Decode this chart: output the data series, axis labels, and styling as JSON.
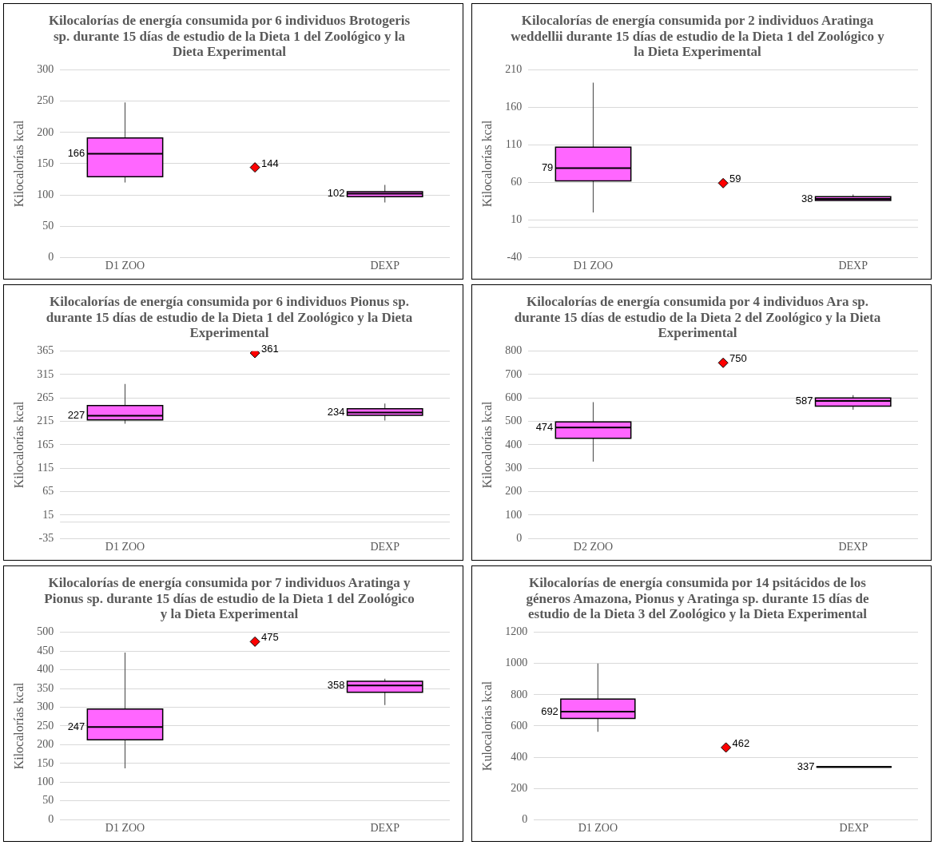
{
  "chart_data": [
    {
      "type": "box",
      "title": "Kilocalorías de energía consumida por 6 individuos Brotogeris sp. durante 15 días de estudio de la Dieta 1 del Zoológico y la Dieta Experimental",
      "ylabel": "Kilocalorías kcal",
      "categories": [
        "D1 ZOO",
        null,
        "DEXP"
      ],
      "ylim": [
        0,
        300
      ],
      "yticks": [
        0,
        50,
        100,
        150,
        200,
        250,
        300
      ],
      "grid": "y",
      "legend": false,
      "data_labels": true,
      "annotations": [
        "166",
        "102"
      ],
      "series": [
        {
          "type": "box",
          "color": "#ff66ff",
          "boxes": [
            {
              "low": 120,
              "q1": 129,
              "median": 166,
              "q3": 191,
              "high": 248
            },
            null,
            {
              "low": 88,
              "q1": 97,
              "median": 102,
              "q3": 105,
              "high": 116
            }
          ]
        },
        {
          "type": "scatter",
          "color": "#ff0000",
          "marker": "diamond",
          "values": [
            null,
            144,
            null
          ]
        }
      ]
    },
    {
      "type": "box",
      "title": "Kilocalorías de energía consumida por 2 individuos Aratinga weddellii durante 15 días de estudio de la Dieta 1 del Zoológico y la Dieta Experimental",
      "ylabel": "Kilocalorías kcal",
      "categories": [
        "D1 ZOO",
        null,
        "DEXP"
      ],
      "ylim": [
        -40,
        210
      ],
      "yticks": [
        -40,
        10,
        60,
        110,
        160,
        210
      ],
      "grid": "y",
      "legend": false,
      "data_labels": true,
      "annotations": [
        "79",
        "38"
      ],
      "ref_lines": [
        {
          "axis": "y",
          "value": 0,
          "color": "#d9d9d9"
        }
      ],
      "series": [
        {
          "type": "box",
          "color": "#ff66ff",
          "boxes": [
            {
              "low": 20,
              "q1": 62,
              "median": 79,
              "q3": 107,
              "high": 193
            },
            null,
            {
              "low": 36,
              "q1": 36,
              "median": 38,
              "q3": 41,
              "high": 44
            }
          ]
        },
        {
          "type": "scatter",
          "color": "#ff0000",
          "marker": "diamond",
          "values": [
            null,
            59,
            null
          ]
        }
      ]
    },
    {
      "type": "box",
      "title": "Kilocalorías de energía consumida por 6 individuos Pionus sp. durante 15 días de estudio de la Dieta 1 del Zoológico y la Dieta Experimental",
      "ylabel": "Kilocalorías kcal",
      "categories": [
        "D1 ZOO",
        null,
        "DEXP"
      ],
      "ylim": [
        -35,
        365
      ],
      "yticks": [
        -35,
        15,
        65,
        115,
        165,
        215,
        265,
        315,
        365
      ],
      "grid": "y",
      "legend": false,
      "data_labels": true,
      "annotations": [
        "227",
        "234"
      ],
      "ref_lines": [
        {
          "axis": "y",
          "value": 0,
          "color": "#d9d9d9"
        }
      ],
      "series": [
        {
          "type": "box",
          "color": "#ff66ff",
          "boxes": [
            {
              "low": 210,
              "q1": 218,
              "median": 227,
              "q3": 249,
              "high": 295
            },
            null,
            {
              "low": 217,
              "q1": 228,
              "median": 234,
              "q3": 242,
              "high": 253
            }
          ]
        },
        {
          "type": "scatter",
          "color": "#ff0000",
          "marker": "diamond",
          "values": [
            null,
            361,
            null
          ]
        }
      ]
    },
    {
      "type": "box",
      "title": "Kilocalorías de energía consumida por 4 individuos Ara sp. durante 15 días de estudio de la Dieta 2 del Zoológico y la Dieta Experimental",
      "ylabel": "Kilocalorías kcal",
      "categories": [
        "D2 ZOO",
        null,
        "DEXP"
      ],
      "ylim": [
        0,
        800
      ],
      "yticks": [
        0,
        100,
        200,
        300,
        400,
        500,
        600,
        700,
        800
      ],
      "grid": "y",
      "legend": false,
      "data_labels": true,
      "annotations": [
        "474",
        "587"
      ],
      "series": [
        {
          "type": "box",
          "color": "#ff66ff",
          "boxes": [
            {
              "low": 328,
              "q1": 428,
              "median": 474,
              "q3": 498,
              "high": 582
            },
            null,
            {
              "low": 550,
              "q1": 565,
              "median": 587,
              "q3": 600,
              "high": 612
            }
          ]
        },
        {
          "type": "scatter",
          "color": "#ff0000",
          "marker": "diamond",
          "values": [
            null,
            750,
            null
          ]
        }
      ]
    },
    {
      "type": "box",
      "title": "Kilocalorías de energía consumida por 7 individuos Aratinga y Pionus sp. durante 15 días de estudio de la Dieta 1 del Zoológico y la Dieta Experimental",
      "ylabel": "Kilocalorías kcal",
      "categories": [
        "D1 ZOO",
        null,
        "DEXP"
      ],
      "ylim": [
        0,
        500
      ],
      "yticks": [
        0,
        50,
        100,
        150,
        200,
        250,
        300,
        350,
        400,
        450,
        500
      ],
      "grid": "y",
      "legend": false,
      "data_labels": true,
      "annotations": [
        "247",
        "358"
      ],
      "series": [
        {
          "type": "box",
          "color": "#ff66ff",
          "boxes": [
            {
              "low": 137,
              "q1": 213,
              "median": 247,
              "q3": 295,
              "high": 446
            },
            null,
            {
              "low": 306,
              "q1": 340,
              "median": 358,
              "q3": 369,
              "high": 376
            }
          ]
        },
        {
          "type": "scatter",
          "color": "#ff0000",
          "marker": "diamond",
          "values": [
            null,
            475,
            null
          ]
        }
      ]
    },
    {
      "type": "box",
      "title": "Kilocalorías de energía consumida por 14 psitácidos de los géneros Amazona, Pionus y Aratinga sp. durante 15 días de estudio de la Dieta 3 del Zoológico y la Dieta Experimental",
      "ylabel": "Kulocalorías kcal",
      "categories": [
        "D1 ZOO",
        null,
        "DEXP"
      ],
      "ylim": [
        0,
        1200
      ],
      "yticks": [
        0,
        200,
        400,
        600,
        800,
        1000,
        1200
      ],
      "grid": "y",
      "legend": false,
      "data_labels": true,
      "annotations": [
        "692",
        "337"
      ],
      "series": [
        {
          "type": "box",
          "color": "#ff66ff",
          "boxes": [
            {
              "low": 563,
              "q1": 648,
              "median": 692,
              "q3": 772,
              "high": 1000
            },
            null,
            {
              "low": 335,
              "q1": 336,
              "median": 337,
              "q3": 339,
              "high": 340
            }
          ]
        },
        {
          "type": "scatter",
          "color": "#ff0000",
          "marker": "diamond",
          "values": [
            null,
            462,
            null
          ]
        }
      ]
    }
  ]
}
